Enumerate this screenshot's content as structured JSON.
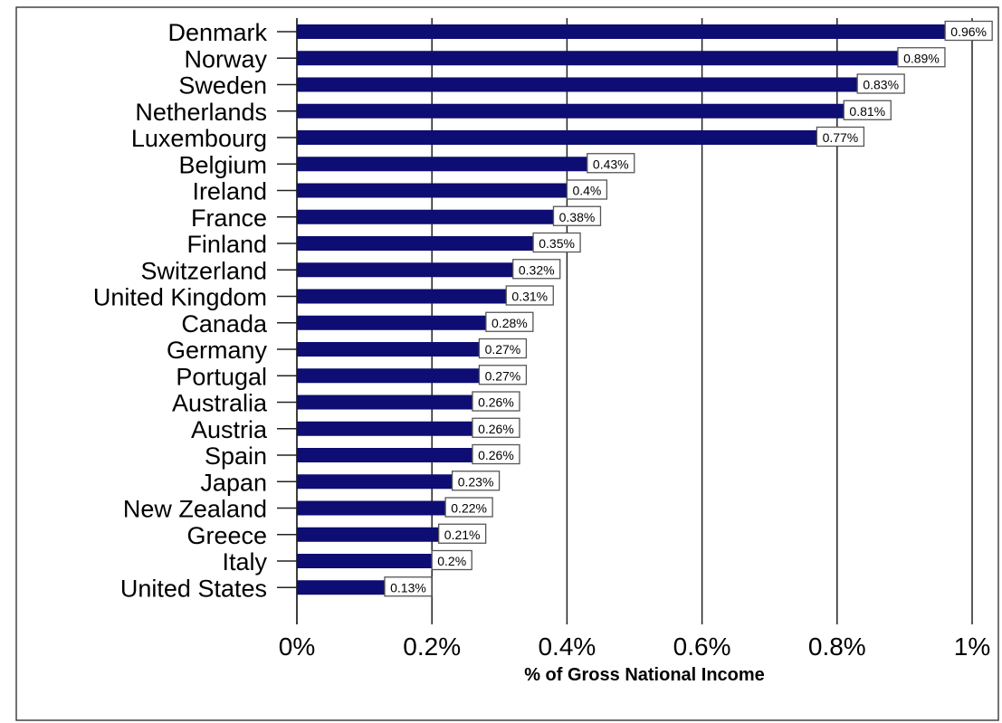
{
  "chart_data": {
    "type": "bar",
    "orientation": "horizontal",
    "categories": [
      "Denmark",
      "Norway",
      "Sweden",
      "Netherlands",
      "Luxembourg",
      "Belgium",
      "Ireland",
      "France",
      "Finland",
      "Switzerland",
      "United Kingdom",
      "Canada",
      "Germany",
      "Portugal",
      "Australia",
      "Austria",
      "Spain",
      "Japan",
      "New Zealand",
      "Greece",
      "Italy",
      "United States"
    ],
    "values": [
      0.96,
      0.89,
      0.83,
      0.81,
      0.77,
      0.43,
      0.4,
      0.38,
      0.35,
      0.32,
      0.31,
      0.28,
      0.27,
      0.27,
      0.26,
      0.26,
      0.26,
      0.23,
      0.22,
      0.21,
      0.2,
      0.13
    ],
    "value_labels": [
      "0.96%",
      "0.89%",
      "0.83%",
      "0.81%",
      "0.77%",
      "0.43%",
      "0.4%",
      "0.38%",
      "0.35%",
      "0.32%",
      "0.31%",
      "0.28%",
      "0.27%",
      "0.27%",
      "0.26%",
      "0.26%",
      "0.26%",
      "0.23%",
      "0.22%",
      "0.21%",
      "0.2%",
      "0.13%"
    ],
    "xlabel": "% of Gross National Income",
    "ylabel": "",
    "title": "",
    "xlim": [
      0,
      1
    ],
    "xticks": [
      0,
      0.2,
      0.4,
      0.6,
      0.8,
      1
    ],
    "xtick_labels": [
      "0%",
      "0.2%",
      "0.4%",
      "0.6%",
      "0.8%",
      "1%"
    ],
    "grid": "vertical",
    "legend": "none",
    "bar_color": "#0d0d73"
  }
}
